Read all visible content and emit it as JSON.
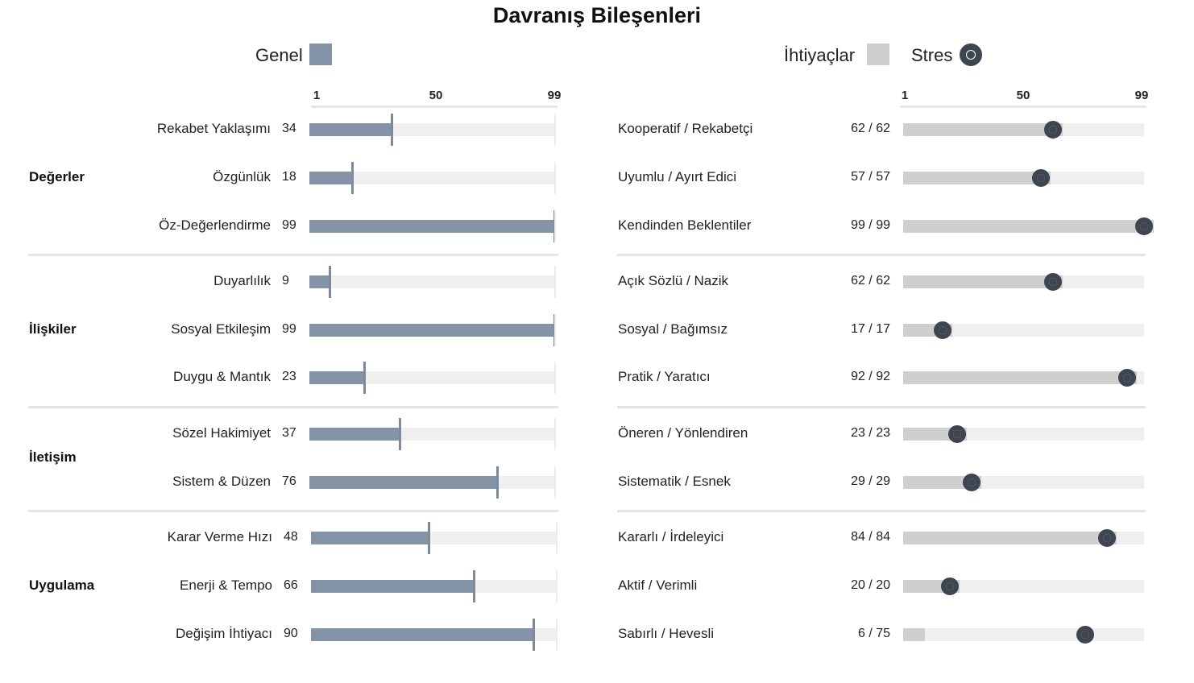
{
  "chart_data": {
    "type": "bar",
    "title": "Davranış Bileşenleri",
    "colors": {
      "genel": "#8593a6",
      "ihtiyaclar": "#cfcfcf",
      "stres": "#3f4550",
      "track": "#efefef"
    },
    "left": {
      "legend": "Genel",
      "axis_ticks": [
        "1",
        "50",
        "99"
      ],
      "axis_range": [
        1,
        99
      ],
      "groups": [
        {
          "name": "Değerler",
          "rows": [
            {
              "label": "Rekabet Yaklaşımı",
              "value": 34,
              "value_text": "34"
            },
            {
              "label": "Özgünlük",
              "value": 18,
              "value_text": "18"
            },
            {
              "label": "Öz-Değerlendirme",
              "value": 99,
              "value_text": "99"
            }
          ]
        },
        {
          "name": "İlişkiler",
          "rows": [
            {
              "label": "Duyarlılık",
              "value": 9,
              "value_text": "9"
            },
            {
              "label": "Sosyal Etkileşim",
              "value": 99,
              "value_text": "99"
            },
            {
              "label": "Duygu & Mantık",
              "value": 23,
              "value_text": "23"
            }
          ]
        },
        {
          "name": "İletişim",
          "rows": [
            {
              "label": "Sözel Hakimiyet",
              "value": 37,
              "value_text": "37"
            },
            {
              "label": "Sistem & Düzen",
              "value": 76,
              "value_text": "76"
            }
          ]
        },
        {
          "name": "Uygulama",
          "rows": [
            {
              "label": "Karar Verme Hızı",
              "value": 48,
              "value_text": "48"
            },
            {
              "label": "Enerji & Tempo",
              "value": 66,
              "value_text": "66"
            },
            {
              "label": "Değişim İhtiyacı",
              "value": 90,
              "value_text": "90"
            }
          ]
        }
      ]
    },
    "right": {
      "legend_needs": "İhtiyaçlar",
      "legend_stress": "Stres",
      "axis_ticks": [
        "1",
        "50",
        "99"
      ],
      "axis_range": [
        1,
        99
      ],
      "groups": [
        {
          "rows": [
            {
              "label": "Kooperatif / Rekabetçi",
              "needs": 62,
              "stress": 62,
              "value_text": "62 / 62"
            },
            {
              "label": "Uyumlu / Ayırt Edici",
              "needs": 57,
              "stress": 57,
              "value_text": "57 / 57"
            },
            {
              "label": "Kendinden Beklentiler",
              "needs": 99,
              "stress": 99,
              "value_text": "99 / 99"
            }
          ]
        },
        {
          "rows": [
            {
              "label": "Açık Sözlü / Nazik",
              "needs": 62,
              "stress": 62,
              "value_text": "62 / 62"
            },
            {
              "label": "Sosyal / Bağımsız",
              "needs": 17,
              "stress": 17,
              "value_text": "17 / 17"
            },
            {
              "label": "Pratik / Yaratıcı",
              "needs": 92,
              "stress": 92,
              "value_text": "92 / 92"
            }
          ]
        },
        {
          "rows": [
            {
              "label": "Öneren / Yönlendiren",
              "needs": 23,
              "stress": 23,
              "value_text": "23 / 23"
            },
            {
              "label": "Sistematik / Esnek",
              "needs": 29,
              "stress": 29,
              "value_text": "29 / 29"
            }
          ]
        },
        {
          "rows": [
            {
              "label": "Kararlı / İrdeleyici",
              "needs": 84,
              "stress": 84,
              "value_text": "84 / 84"
            },
            {
              "label": "Aktif / Verimli",
              "needs": 20,
              "stress": 20,
              "value_text": "20 / 20"
            },
            {
              "label": "Sabırlı / Hevesli",
              "needs": 6,
              "stress": 75,
              "value_text": "6 / 75"
            }
          ]
        }
      ]
    }
  }
}
